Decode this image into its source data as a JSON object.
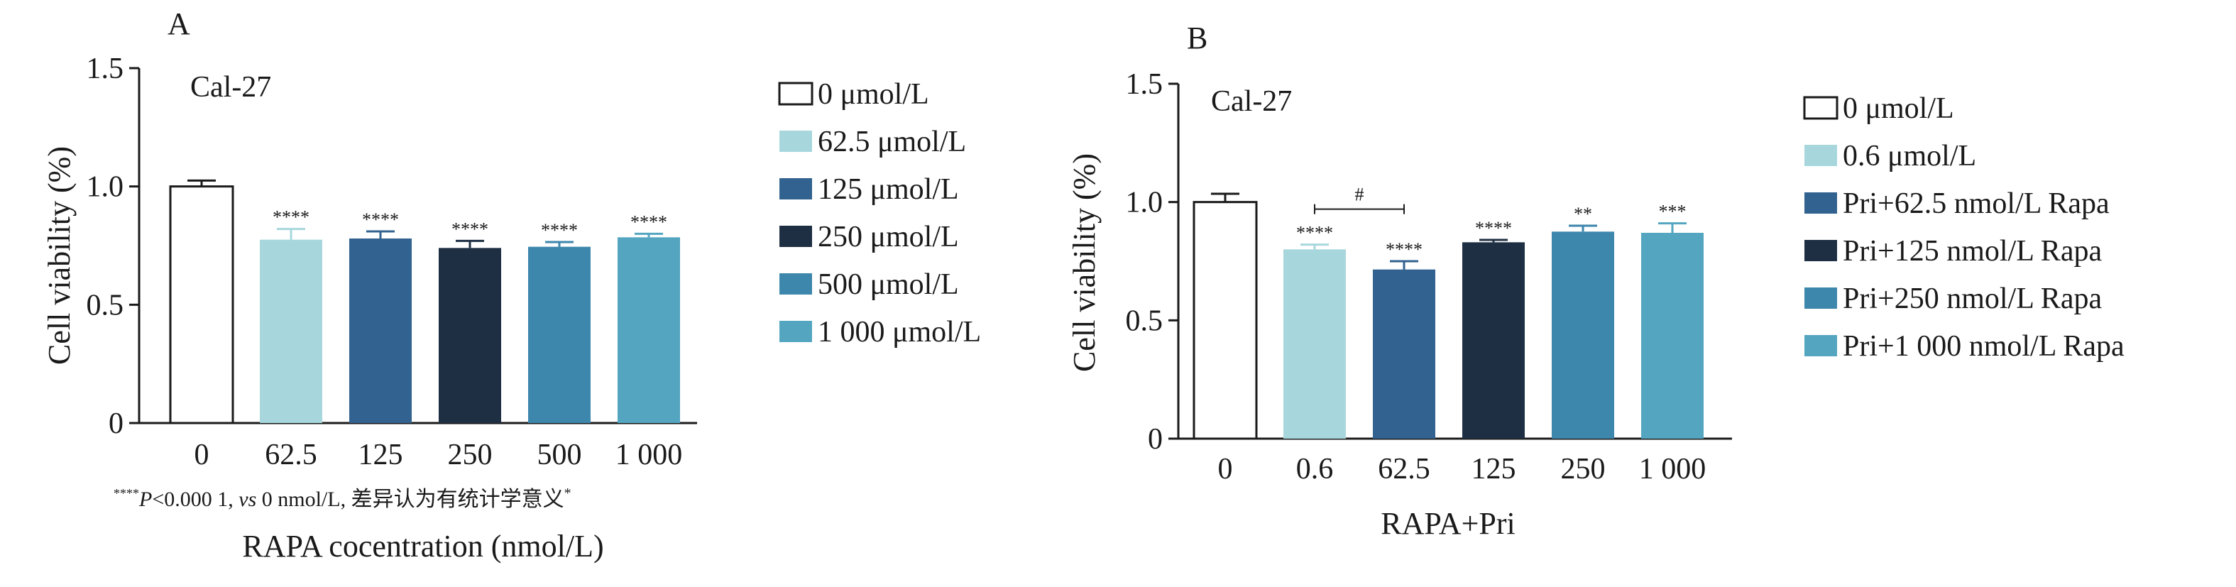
{
  "colors": {
    "c0": "#ffffff",
    "c1": "#a7d7dd",
    "c2": "#32628f",
    "c3": "#1e2f43",
    "c4": "#3d86ac",
    "c5": "#54a6c0",
    "axis": "#1a1a1a"
  },
  "chart_data": [
    {
      "panel_label": "A",
      "type": "bar",
      "inner_title": "Cal-27",
      "ylabel": "Cell viability (%)",
      "xlabel": "RAPA cocentration (nmol/L)",
      "ylim": [
        0,
        1.5
      ],
      "yticks": [
        0,
        0.5,
        1.0,
        1.5
      ],
      "ytick_labels": [
        "0",
        "0.5",
        "1.0",
        "1.5"
      ],
      "categories": [
        "0",
        "62.5",
        "125",
        "250",
        "500",
        "1 000"
      ],
      "values": [
        1.0,
        0.775,
        0.78,
        0.74,
        0.745,
        0.785
      ],
      "errors": [
        0.025,
        0.045,
        0.03,
        0.03,
        0.02,
        0.015
      ],
      "significance": [
        "",
        "****",
        "****",
        "****",
        "****",
        "****"
      ],
      "footnote": {
        "stars": "****",
        "p": "P",
        "main": "<0.000 1, ",
        "vs": "vs",
        "rest": " 0 nmol/L, 差异认为有统计学意义",
        "sup": "*"
      },
      "legend": [
        "0 μmol/L",
        "62.5 μmol/L",
        "125 μmol/L",
        "250 μmol/L",
        "500 μmol/L",
        "1 000 μmol/L"
      ]
    },
    {
      "panel_label": "B",
      "type": "bar",
      "inner_title": "Cal-27",
      "ylabel": "Cell viability (%)",
      "xlabel": "RAPA+Pri",
      "ylim": [
        0,
        1.5
      ],
      "yticks": [
        0,
        0.5,
        1.0,
        1.5
      ],
      "ytick_labels": [
        "0",
        "0.5",
        "1.0",
        "1.5"
      ],
      "categories": [
        "0",
        "0.6",
        "62.5",
        "125",
        "250",
        "1 000"
      ],
      "values": [
        1.0,
        0.8,
        0.715,
        0.83,
        0.875,
        0.87
      ],
      "errors": [
        0.035,
        0.02,
        0.035,
        0.01,
        0.025,
        0.04
      ],
      "significance": [
        "",
        "****",
        "****",
        "****",
        "**",
        "***"
      ],
      "bracket": {
        "from": 1,
        "to": 2,
        "label": "#",
        "y": 0.97
      },
      "legend": [
        "0 μmol/L",
        "0.6 μmol/L",
        "Pri+62.5 nmol/L Rapa",
        "Pri+125 nmol/L Rapa",
        "Pri+250 nmol/L Rapa",
        "Pri+1 000 nmol/L Rapa"
      ]
    }
  ]
}
